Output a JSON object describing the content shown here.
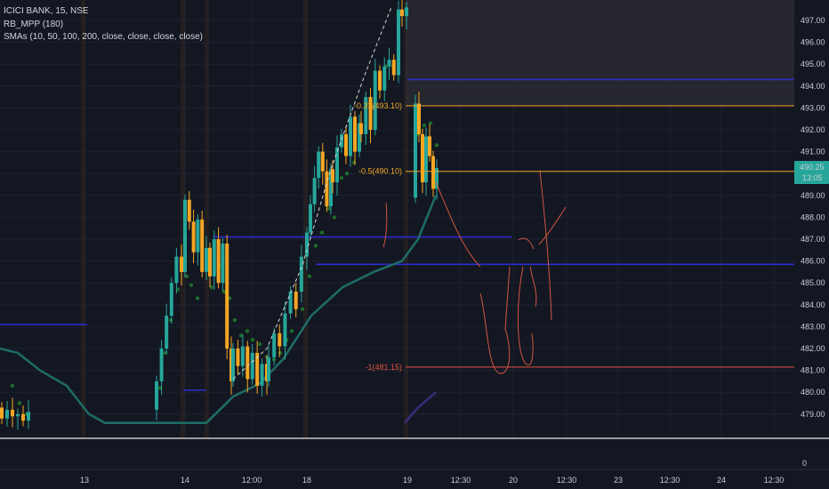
{
  "legend": {
    "symbol": "ICICI BANK, 15, NSE",
    "indicator1": "RB_MPP (180)",
    "indicator2": "SMAs (10, 50, 100, 200, close, close, close, close)"
  },
  "price_axis": {
    "labels": [
      "497.00",
      "496.00",
      "495.00",
      "494.00",
      "493.00",
      "492.00",
      "491.00",
      "490.00",
      "489.00",
      "488.00",
      "487.00",
      "486.00",
      "485.00",
      "484.00",
      "483.00",
      "482.00",
      "481.00",
      "480.00",
      "479.00"
    ],
    "current_price": "490.25",
    "countdown": "13:05",
    "sub_pane_zero": "0"
  },
  "time_axis": {
    "labels": [
      "13",
      "14",
      "12:00",
      "18",
      "19",
      "12:30",
      "20",
      "12:30",
      "23",
      "12:30",
      "24",
      "12:30"
    ]
  },
  "fib_levels": [
    {
      "label": "-0.33(493.10)",
      "value": 493.1,
      "color": "#f5a623"
    },
    {
      "label": "-0.5(490.10)",
      "value": 490.1,
      "color": "#f5a623"
    },
    {
      "label": "-1(481.15)",
      "value": 481.15,
      "color": "#e0533d"
    }
  ],
  "colors": {
    "background": "#131722",
    "bull_candle": "#26a69a",
    "bear_candle": "#f5a623",
    "sma_line": "#1e6b66",
    "psar_dots": "#1f6b2a",
    "pivot_lines": "#2d2dcc",
    "fib_orange": "#f5a623",
    "fib_red": "#e0533d",
    "price_badge": "#26a69a",
    "projection_zone": "#2a2a30"
  }
}
